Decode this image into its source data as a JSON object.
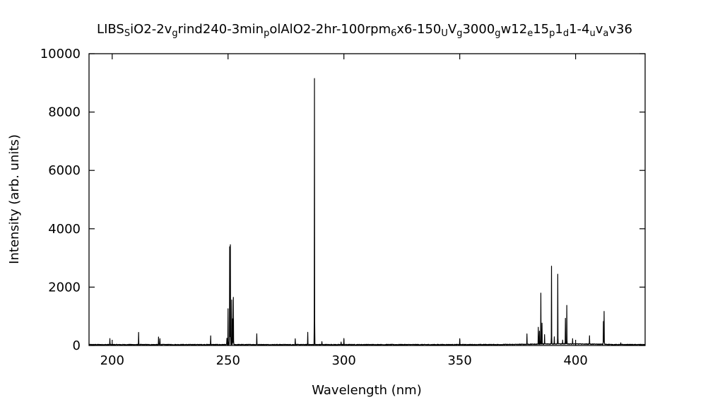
{
  "chart_data": {
    "type": "line",
    "title": {
      "segments": [
        {
          "text": "LIBS",
          "sub": false
        },
        {
          "text": "S",
          "sub": true
        },
        {
          "text": "iO2-2v",
          "sub": false
        },
        {
          "text": "g",
          "sub": true
        },
        {
          "text": "rind240-3min",
          "sub": false
        },
        {
          "text": "p",
          "sub": true
        },
        {
          "text": "olAlO2-2hr-100rpm",
          "sub": false
        },
        {
          "text": "6",
          "sub": true
        },
        {
          "text": "x6-150",
          "sub": false
        },
        {
          "text": "U",
          "sub": true
        },
        {
          "text": "V",
          "sub": false
        },
        {
          "text": "g",
          "sub": true
        },
        {
          "text": "3000",
          "sub": false
        },
        {
          "text": "g",
          "sub": true
        },
        {
          "text": "w12",
          "sub": false
        },
        {
          "text": "e",
          "sub": true
        },
        {
          "text": "15",
          "sub": false
        },
        {
          "text": "p",
          "sub": true
        },
        {
          "text": "1",
          "sub": false
        },
        {
          "text": "d",
          "sub": true
        },
        {
          "text": "1-4",
          "sub": false
        },
        {
          "text": "u",
          "sub": true
        },
        {
          "text": "v",
          "sub": false
        },
        {
          "text": "a",
          "sub": true
        },
        {
          "text": "v36",
          "sub": false
        }
      ]
    },
    "xlabel": "Wavelength (nm)",
    "ylabel": "Intensity (arb. units)",
    "xlim": [
      190,
      430
    ],
    "ylim": [
      0,
      10000
    ],
    "xticks": [
      200,
      250,
      300,
      350,
      400
    ],
    "yticks": [
      0,
      2000,
      4000,
      6000,
      8000,
      10000
    ],
    "grid": false,
    "legend": "none",
    "line_color": "#000000",
    "baseline": 30,
    "peaks": [
      {
        "x": 199.0,
        "y": 230
      },
      {
        "x": 211.4,
        "y": 450
      },
      {
        "x": 220.0,
        "y": 280
      },
      {
        "x": 220.6,
        "y": 230
      },
      {
        "x": 242.5,
        "y": 330
      },
      {
        "x": 249.5,
        "y": 250
      },
      {
        "x": 250.0,
        "y": 1250
      },
      {
        "x": 250.7,
        "y": 3380
      },
      {
        "x": 251.0,
        "y": 3450
      },
      {
        "x": 251.6,
        "y": 1550
      },
      {
        "x": 252.0,
        "y": 900
      },
      {
        "x": 252.3,
        "y": 1650
      },
      {
        "x": 262.4,
        "y": 400
      },
      {
        "x": 279.0,
        "y": 230
      },
      {
        "x": 284.4,
        "y": 450
      },
      {
        "x": 287.3,
        "y": 9150
      },
      {
        "x": 290.5,
        "y": 130
      },
      {
        "x": 298.8,
        "y": 120
      },
      {
        "x": 300.0,
        "y": 240
      },
      {
        "x": 350.0,
        "y": 230
      },
      {
        "x": 379.0,
        "y": 380
      },
      {
        "x": 383.9,
        "y": 600
      },
      {
        "x": 384.4,
        "y": 480
      },
      {
        "x": 385.0,
        "y": 1780
      },
      {
        "x": 385.5,
        "y": 750
      },
      {
        "x": 386.6,
        "y": 350
      },
      {
        "x": 389.6,
        "y": 2700
      },
      {
        "x": 390.8,
        "y": 280
      },
      {
        "x": 392.3,
        "y": 2430
      },
      {
        "x": 394.4,
        "y": 150
      },
      {
        "x": 395.6,
        "y": 900
      },
      {
        "x": 396.2,
        "y": 1350
      },
      {
        "x": 398.7,
        "y": 200
      },
      {
        "x": 406.0,
        "y": 320
      },
      {
        "x": 412.0,
        "y": 820
      },
      {
        "x": 412.3,
        "y": 1160
      },
      {
        "x": 419.5,
        "y": 90
      }
    ]
  }
}
